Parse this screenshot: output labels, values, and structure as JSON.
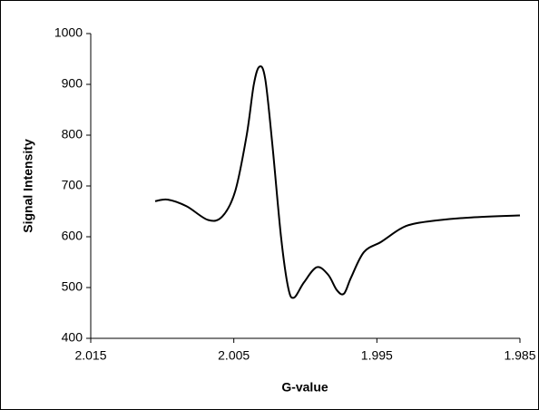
{
  "chart_data": {
    "type": "line",
    "xlabel": "G-value",
    "ylabel": "Signal Intensity",
    "x": [
      2.0105,
      2.0096,
      2.0083,
      2.0068,
      2.0058,
      2.0049,
      2.0041,
      2.0036,
      2.0032,
      2.0028,
      2.0023,
      2.0017,
      2.0012,
      2.0008,
      2.0001,
      1.9992,
      1.9984,
      1.9978,
      1.9973,
      1.9968,
      1.9959,
      1.9947,
      1.9934,
      1.9925,
      1.9909,
      1.9884,
      1.985
    ],
    "series": [
      {
        "color": "#000000",
        "values": [
          670,
          673,
          660,
          633,
          640,
          690,
          800,
          900,
          935,
          910,
          780,
          600,
          500,
          480,
          510,
          540,
          525,
          495,
          488,
          520,
          570,
          590,
          615,
          625,
          632,
          638,
          642
        ]
      }
    ],
    "xlim": [
      2.015,
      1.985
    ],
    "xticks": [
      2.015,
      2.005,
      1.995,
      1.985
    ],
    "ylim": [
      400,
      1000
    ],
    "yticks": [
      400,
      500,
      600,
      700,
      800,
      900,
      1000
    ]
  }
}
